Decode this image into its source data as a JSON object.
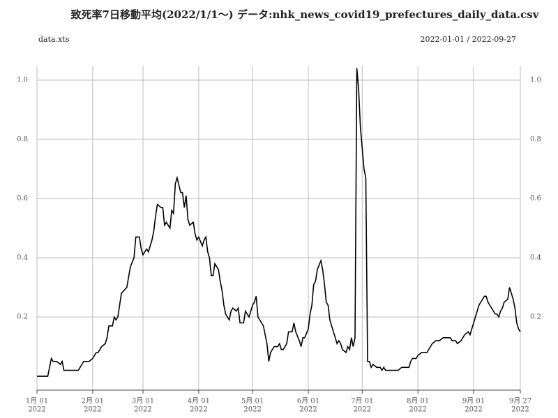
{
  "chart_data": {
    "type": "line",
    "title": "致死率7日移動平均(2022/1/1〜) データ:nhk_news_covid19_prefectures_daily_data.csv",
    "subtitle": "data.xts",
    "date_range": "2022-01-01 / 2022-09-27",
    "x": [
      "2022-01-01",
      "2022-01-07",
      "2022-01-09",
      "2022-01-10",
      "2022-01-12",
      "2022-01-14",
      "2022-01-15",
      "2022-01-16",
      "2022-01-24",
      "2022-01-26",
      "2022-01-27",
      "2022-01-30",
      "2022-02-01",
      "2022-02-03",
      "2022-02-04",
      "2022-02-06",
      "2022-02-08",
      "2022-02-09",
      "2022-02-10",
      "2022-02-12",
      "2022-02-13",
      "2022-02-14",
      "2022-02-15",
      "2022-02-16",
      "2022-02-17",
      "2022-02-20",
      "2022-02-22",
      "2022-02-24",
      "2022-02-25",
      "2022-02-27",
      "2022-02-28",
      "2022-03-01",
      "2022-03-03",
      "2022-03-04",
      "2022-03-06",
      "2022-03-07",
      "2022-03-08",
      "2022-03-09",
      "2022-03-11",
      "2022-03-12",
      "2022-03-13",
      "2022-03-14",
      "2022-03-16",
      "2022-03-17",
      "2022-03-18",
      "2022-03-19",
      "2022-03-20",
      "2022-03-22",
      "2022-03-23",
      "2022-03-24",
      "2022-03-25",
      "2022-03-26",
      "2022-03-27",
      "2022-03-29",
      "2022-03-30",
      "2022-03-31",
      "2022-04-01",
      "2022-04-03",
      "2022-04-04",
      "2022-04-05",
      "2022-04-06",
      "2022-04-07",
      "2022-04-08",
      "2022-04-09",
      "2022-04-10",
      "2022-04-12",
      "2022-04-13",
      "2022-04-14",
      "2022-04-15",
      "2022-04-16",
      "2022-04-18",
      "2022-04-19",
      "2022-04-20",
      "2022-04-22",
      "2022-04-23",
      "2022-04-24",
      "2022-04-26",
      "2022-04-27",
      "2022-04-28",
      "2022-04-29",
      "2022-05-01",
      "2022-05-02",
      "2022-05-03",
      "2022-05-04",
      "2022-05-06",
      "2022-05-07",
      "2022-05-08",
      "2022-05-09",
      "2022-05-10",
      "2022-05-11",
      "2022-05-13",
      "2022-05-15",
      "2022-05-16",
      "2022-05-17",
      "2022-05-18",
      "2022-05-20",
      "2022-05-21",
      "2022-05-23",
      "2022-05-24",
      "2022-05-25",
      "2022-05-27",
      "2022-05-28",
      "2022-05-29",
      "2022-05-30",
      "2022-06-01",
      "2022-06-02",
      "2022-06-03",
      "2022-06-04",
      "2022-06-05",
      "2022-06-06",
      "2022-06-08",
      "2022-06-09",
      "2022-06-10",
      "2022-06-11",
      "2022-06-12",
      "2022-06-13",
      "2022-06-15",
      "2022-06-16",
      "2022-06-17",
      "2022-06-18",
      "2022-06-19",
      "2022-06-20",
      "2022-06-22",
      "2022-06-23",
      "2022-06-24",
      "2022-06-25",
      "2022-06-26",
      "2022-06-27",
      "2022-06-28",
      "2022-06-29",
      "2022-06-30",
      "2022-07-02",
      "2022-07-03",
      "2022-07-04",
      "2022-07-05",
      "2022-07-06",
      "2022-07-07",
      "2022-07-09",
      "2022-07-11",
      "2022-07-12",
      "2022-07-13",
      "2022-07-14",
      "2022-07-21",
      "2022-07-23",
      "2022-07-27",
      "2022-07-28",
      "2022-07-29",
      "2022-07-31",
      "2022-08-01",
      "2022-08-03",
      "2022-08-06",
      "2022-08-07",
      "2022-08-08",
      "2022-08-09",
      "2022-08-11",
      "2022-08-13",
      "2022-08-15",
      "2022-08-19",
      "2022-08-20",
      "2022-08-22",
      "2022-08-23",
      "2022-08-25",
      "2022-08-26",
      "2022-08-27",
      "2022-08-29",
      "2022-08-30",
      "2022-08-31",
      "2022-09-01",
      "2022-09-03",
      "2022-09-04",
      "2022-09-05",
      "2022-09-07",
      "2022-09-08",
      "2022-09-09",
      "2022-09-10",
      "2022-09-11",
      "2022-09-13",
      "2022-09-14",
      "2022-09-15",
      "2022-09-16",
      "2022-09-17",
      "2022-09-18",
      "2022-09-20",
      "2022-09-21",
      "2022-09-22",
      "2022-09-23",
      "2022-09-24",
      "2022-09-25",
      "2022-09-26",
      "2022-09-27"
    ],
    "series": [
      {
        "color": "#000000",
        "values": [
          0,
          0,
          0.06,
          0.05,
          0.05,
          0.04,
          0.05,
          0.02,
          0.02,
          0.04,
          0.05,
          0.05,
          0.06,
          0.08,
          0.08,
          0.1,
          0.11,
          0.13,
          0.17,
          0.17,
          0.2,
          0.19,
          0.2,
          0.24,
          0.28,
          0.3,
          0.37,
          0.4,
          0.47,
          0.47,
          0.43,
          0.41,
          0.43,
          0.42,
          0.46,
          0.49,
          0.54,
          0.58,
          0.57,
          0.57,
          0.51,
          0.52,
          0.5,
          0.56,
          0.55,
          0.65,
          0.67,
          0.62,
          0.62,
          0.57,
          0.61,
          0.53,
          0.51,
          0.52,
          0.48,
          0.46,
          0.47,
          0.44,
          0.46,
          0.47,
          0.42,
          0.4,
          0.34,
          0.34,
          0.38,
          0.36,
          0.32,
          0.29,
          0.24,
          0.21,
          0.19,
          0.22,
          0.23,
          0.22,
          0.23,
          0.18,
          0.18,
          0.22,
          0.21,
          0.2,
          0.24,
          0.25,
          0.27,
          0.2,
          0.18,
          0.17,
          0.14,
          0.11,
          0.05,
          0.08,
          0.1,
          0.1,
          0.11,
          0.09,
          0.09,
          0.11,
          0.15,
          0.15,
          0.18,
          0.15,
          0.12,
          0.1,
          0.13,
          0.13,
          0.16,
          0.21,
          0.24,
          0.31,
          0.32,
          0.36,
          0.39,
          0.36,
          0.31,
          0.25,
          0.24,
          0.19,
          0.15,
          0.13,
          0.11,
          0.12,
          0.11,
          0.09,
          0.08,
          0.1,
          0.09,
          0.13,
          0.1,
          0.13,
          1.04,
          0.97,
          0.84,
          0.7,
          0.67,
          0.05,
          0.05,
          0.03,
          0.04,
          0.03,
          0.03,
          0.02,
          0.03,
          0.02,
          0.02,
          0.03,
          0.03,
          0.05,
          0.06,
          0.06,
          0.07,
          0.08,
          0.08,
          0.09,
          0.1,
          0.11,
          0.12,
          0.12,
          0.13,
          0.13,
          0.12,
          0.12,
          0.11,
          0.12,
          0.13,
          0.14,
          0.15,
          0.14,
          0.16,
          0.18,
          0.22,
          0.24,
          0.25,
          0.27,
          0.27,
          0.25,
          0.24,
          0.23,
          0.21,
          0.21,
          0.2,
          0.22,
          0.23,
          0.25,
          0.26,
          0.3,
          0.28,
          0.26,
          0.23,
          0.18,
          0.16,
          0.15
        ]
      }
    ],
    "xlim": [
      "2022-01-01",
      "2022-09-27"
    ],
    "xticks": [
      {
        "value": "2022-01-01",
        "label": [
          "1月 01",
          "2022"
        ]
      },
      {
        "value": "2022-02-01",
        "label": [
          "2月 01",
          "2022"
        ]
      },
      {
        "value": "2022-03-01",
        "label": [
          "3月 01",
          "2022"
        ]
      },
      {
        "value": "2022-04-01",
        "label": [
          "4月 01",
          "2022"
        ]
      },
      {
        "value": "2022-05-01",
        "label": [
          "5月 01",
          "2022"
        ]
      },
      {
        "value": "2022-06-01",
        "label": [
          "6月 01",
          "2022"
        ]
      },
      {
        "value": "2022-07-01",
        "label": [
          "7月 01",
          "2022"
        ]
      },
      {
        "value": "2022-08-01",
        "label": [
          "8月 01",
          "2022"
        ]
      },
      {
        "value": "2022-09-01",
        "label": [
          "9月 01",
          "2022"
        ]
      },
      {
        "value": "2022-09-27",
        "label": [
          "9月 27",
          "2022"
        ]
      }
    ],
    "ylim": [
      -0.047,
      1.047
    ],
    "yticks": [
      0.2,
      0.4,
      0.6,
      0.8,
      {
        "value": 1,
        "label": "1.0"
      }
    ],
    "grid": true
  }
}
